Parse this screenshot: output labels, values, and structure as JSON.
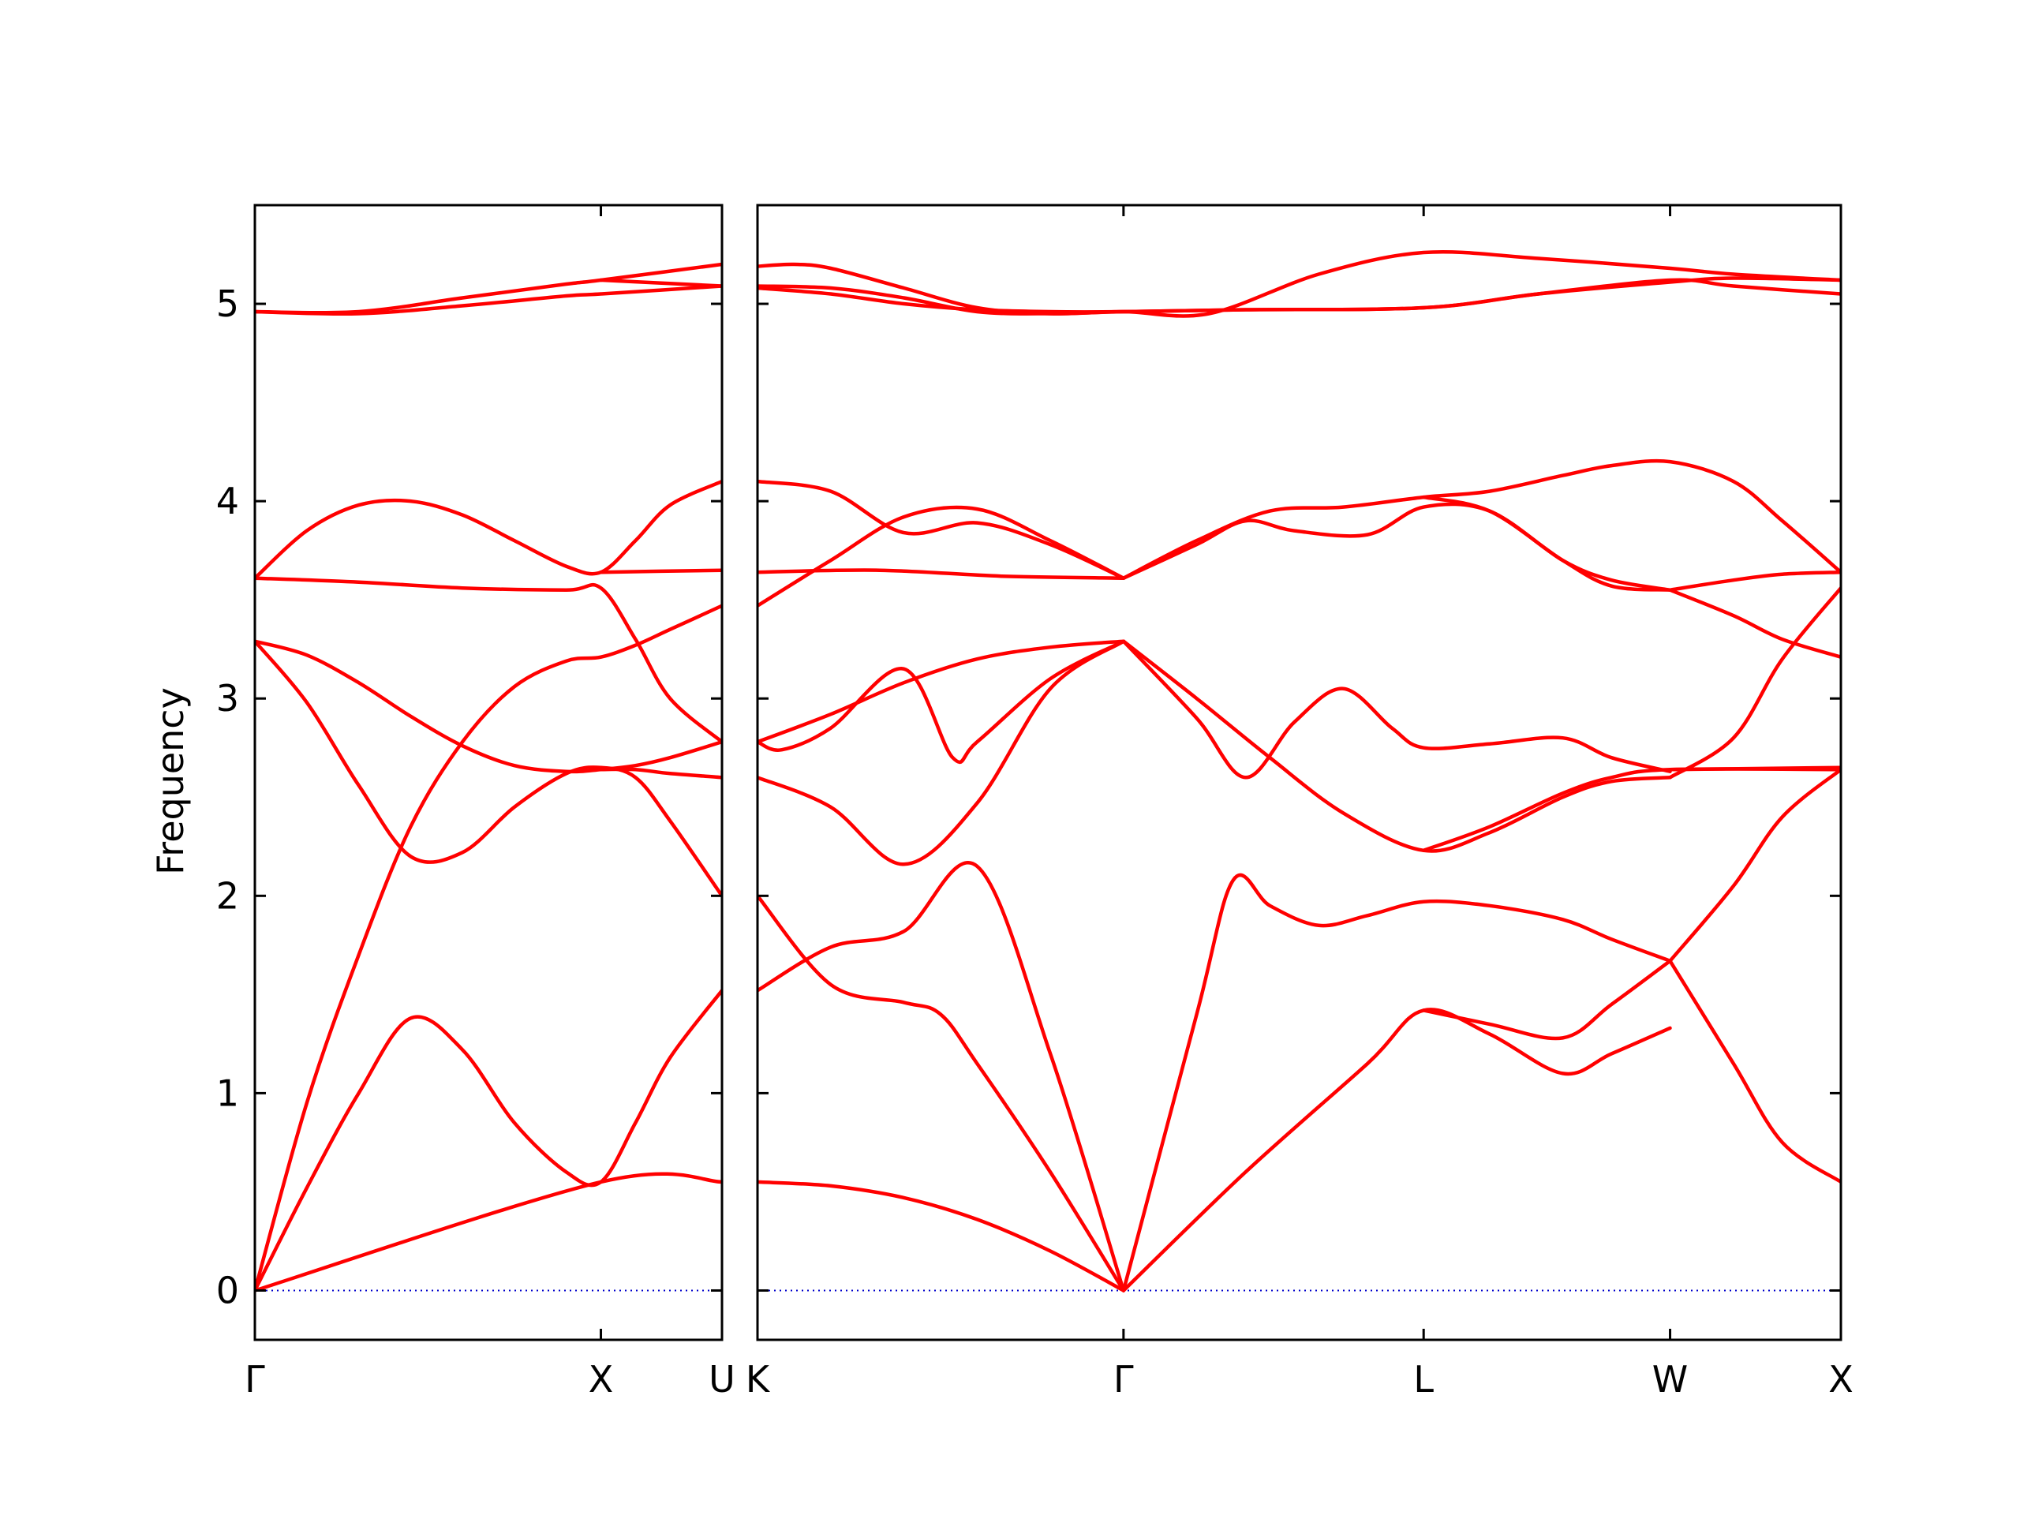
{
  "chart_data": {
    "type": "line",
    "title": "",
    "ylabel": "Frequency",
    "ylim": [
      -0.25,
      5.5
    ],
    "yticks": [
      0,
      1,
      2,
      3,
      4,
      5
    ],
    "grid": false,
    "line_color": "#ff0000",
    "zero_line_color": "#0000cc",
    "panels": [
      {
        "name": "Γ-X-U",
        "xlim": [
          0,
          1.35
        ],
        "ticks": [
          {
            "label": "Γ",
            "x": 0
          },
          {
            "label": "X",
            "x": 1.0
          },
          {
            "label": "U",
            "x": 1.35
          }
        ],
        "series": [
          {
            "x": [
              0,
              0.15,
              0.3,
              0.45,
              0.6,
              0.75,
              0.9,
              1.0,
              1.1,
              1.2,
              1.35
            ],
            "y": [
              0,
              0.52,
              1.0,
              1.38,
              1.22,
              0.85,
              0.6,
              0.55,
              0.85,
              1.18,
              1.52
            ]
          },
          {
            "x": [
              0,
              1.0,
              1.35
            ],
            "y": [
              0,
              0.55,
              0.55
            ]
          },
          {
            "x": [
              0,
              0.15,
              0.3,
              0.45,
              0.6,
              0.75,
              0.9,
              1.0,
              1.1,
              1.2,
              1.35
            ],
            "y": [
              0,
              0.95,
              1.7,
              2.35,
              2.78,
              3.06,
              3.19,
              3.21,
              3.27,
              3.35,
              3.47
            ]
          },
          {
            "x": [
              0,
              0.15,
              0.3,
              0.45,
              0.6,
              0.75,
              0.9,
              1.0,
              1.1,
              1.2,
              1.35
            ],
            "y": [
              3.29,
              2.98,
              2.56,
              2.2,
              2.22,
              2.45,
              2.62,
              2.65,
              2.6,
              2.38,
              2.0
            ]
          },
          {
            "x": [
              0,
              0.15,
              0.3,
              0.45,
              0.6,
              0.75,
              0.9,
              1.0,
              1.1,
              1.2,
              1.35
            ],
            "y": [
              3.29,
              3.22,
              3.08,
              2.91,
              2.76,
              2.66,
              2.63,
              2.64,
              2.66,
              2.7,
              2.78
            ]
          },
          {
            "x": [
              1.0,
              1.1,
              1.2,
              1.35
            ],
            "y": [
              2.64,
              2.64,
              2.62,
              2.6
            ]
          },
          {
            "x": [
              0,
              0.3,
              0.6,
              0.9,
              1.0,
              1.1,
              1.2,
              1.35
            ],
            "y": [
              3.61,
              3.59,
              3.56,
              3.55,
              3.56,
              3.3,
              3.0,
              2.78
            ]
          },
          {
            "x": [
              0,
              0.15,
              0.3,
              0.45,
              0.6,
              0.75,
              0.9,
              1.0,
              1.1,
              1.2,
              1.35
            ],
            "y": [
              3.61,
              3.85,
              3.98,
              4.0,
              3.93,
              3.8,
              3.67,
              3.64,
              3.8,
              3.98,
              4.1
            ]
          },
          {
            "x": [
              1.0,
              1.35
            ],
            "y": [
              3.64,
              3.65
            ]
          },
          {
            "x": [
              0,
              0.3,
              0.6,
              0.9,
              1.0,
              1.35
            ],
            "y": [
              4.96,
              4.95,
              4.99,
              5.04,
              5.05,
              5.09
            ]
          },
          {
            "x": [
              0,
              0.3,
              0.6,
              0.9,
              1.0,
              1.35
            ],
            "y": [
              4.96,
              4.96,
              5.03,
              5.1,
              5.12,
              5.2
            ]
          },
          {
            "x": [
              1.0,
              1.35
            ],
            "y": [
              5.12,
              5.09
            ]
          }
        ]
      },
      {
        "name": "K-Γ-L-W-X",
        "xlim": [
          0,
          4.44
        ],
        "ticks": [
          {
            "label": "K",
            "x": 0
          },
          {
            "label": "Γ",
            "x": 1.5
          },
          {
            "label": "L",
            "x": 2.73
          },
          {
            "label": "W",
            "x": 3.74
          },
          {
            "label": "X",
            "x": 4.44
          }
        ],
        "series": [
          {
            "x": [
              0,
              0.3,
              0.6,
              0.9,
              1.2,
              1.5
            ],
            "y": [
              0.55,
              0.53,
              0.47,
              0.36,
              0.2,
              0
            ]
          },
          {
            "x": [
              0,
              0.3,
              0.6,
              0.75,
              0.9,
              1.2,
              1.5
            ],
            "y": [
              2.0,
              1.55,
              1.46,
              1.4,
              1.15,
              0.6,
              0
            ]
          },
          {
            "x": [
              0,
              0.3,
              0.6,
              0.9,
              1.2,
              1.5
            ],
            "y": [
              1.52,
              1.74,
              1.82,
              2.15,
              1.2,
              0
            ]
          },
          {
            "x": [
              1.5,
              2.0,
              2.5,
              2.73,
              3.0,
              3.3,
              3.5,
              3.74
            ],
            "y": [
              0,
              0.6,
              1.15,
              1.42,
              1.3,
              1.1,
              1.2,
              1.33
            ]
          },
          {
            "x": [
              2.73,
              3.0,
              3.3,
              3.5,
              3.74
            ],
            "y": [
              1.42,
              1.35,
              1.28,
              1.45,
              1.67
            ]
          },
          {
            "x": [
              1.5,
              1.8,
              1.95,
              2.1,
              2.3,
              2.5,
              2.73,
              3.0,
              3.3,
              3.5,
              3.74
            ],
            "y": [
              0,
              1.4,
              2.08,
              1.95,
              1.85,
              1.9,
              1.97,
              1.95,
              1.88,
              1.78,
              1.67
            ]
          },
          {
            "x": [
              3.74,
              4.0,
              4.2,
              4.44
            ],
            "y": [
              1.67,
              1.15,
              0.75,
              0.55
            ]
          },
          {
            "x": [
              3.74,
              4.0,
              4.2,
              4.44
            ],
            "y": [
              1.67,
              2.05,
              2.4,
              2.64
            ]
          },
          {
            "x": [
              0,
              0.3,
              0.6,
              0.9,
              1.2,
              1.5
            ],
            "y": [
              2.6,
              2.45,
              2.16,
              2.47,
              3.05,
              3.29
            ]
          },
          {
            "x": [
              0,
              0.3,
              0.6,
              0.9,
              1.2,
              1.5
            ],
            "y": [
              2.78,
              2.92,
              3.08,
              3.2,
              3.26,
              3.29
            ]
          },
          {
            "x": [
              0,
              0.1,
              0.3,
              0.6,
              0.8,
              0.9,
              1.2,
              1.5
            ],
            "y": [
              2.78,
              2.74,
              2.85,
              3.15,
              2.7,
              2.78,
              3.1,
              3.29
            ]
          },
          {
            "x": [
              1.5,
              1.8,
              2.0,
              2.2,
              2.4,
              2.6,
              2.73,
              3.0,
              3.3,
              3.5,
              3.74
            ],
            "y": [
              3.29,
              2.9,
              2.6,
              2.88,
              3.05,
              2.85,
              2.75,
              2.77,
              2.8,
              2.7,
              2.63
            ]
          },
          {
            "x": [
              1.5,
              1.8,
              2.1,
              2.4,
              2.73,
              3.0,
              3.3,
              3.5,
              3.74
            ],
            "y": [
              3.29,
              3.0,
              2.7,
              2.42,
              2.23,
              2.32,
              2.5,
              2.58,
              2.6
            ]
          },
          {
            "x": [
              3.74,
              4.0,
              4.2,
              4.44
            ],
            "y": [
              2.6,
              2.8,
              3.2,
              3.56
            ]
          },
          {
            "x": [
              2.73,
              3.0,
              3.3,
              3.5,
              3.74,
              4.44
            ],
            "y": [
              2.23,
              2.35,
              2.52,
              2.6,
              2.64,
              2.64
            ]
          },
          {
            "x": [
              3.74,
              4.44
            ],
            "y": [
              2.64,
              2.65
            ]
          },
          {
            "x": [
              0,
              0.5,
              1.0,
              1.5
            ],
            "y": [
              3.64,
              3.65,
              3.62,
              3.61
            ]
          },
          {
            "x": [
              0,
              0.3,
              0.6,
              0.9,
              1.2,
              1.5
            ],
            "y": [
              4.1,
              4.05,
              3.84,
              3.89,
              3.78,
              3.61
            ]
          },
          {
            "x": [
              0,
              0.3,
              0.6,
              0.9,
              1.2,
              1.5
            ],
            "y": [
              3.47,
              3.7,
              3.92,
              3.96,
              3.8,
              3.61
            ]
          },
          {
            "x": [
              1.5,
              1.8,
              2.1,
              2.4,
              2.73,
              3.0,
              3.3,
              3.5,
              3.74,
              4.0,
              4.2,
              4.44
            ],
            "y": [
              3.61,
              3.8,
              3.95,
              3.97,
              4.02,
              4.05,
              4.13,
              4.18,
              4.2,
              4.1,
              3.9,
              3.64
            ]
          },
          {
            "x": [
              1.5,
              1.8,
              2.0,
              2.2,
              2.5,
              2.73,
              3.0,
              3.3,
              3.5,
              3.74
            ],
            "y": [
              3.61,
              3.78,
              3.9,
              3.85,
              3.83,
              3.97,
              3.95,
              3.7,
              3.6,
              3.55
            ]
          },
          {
            "x": [
              2.73,
              3.0,
              3.3,
              3.5,
              3.74
            ],
            "y": [
              4.02,
              3.95,
              3.7,
              3.57,
              3.55
            ]
          },
          {
            "x": [
              3.74,
              4.0,
              4.2,
              4.44
            ],
            "y": [
              3.55,
              3.42,
              3.3,
              3.21
            ]
          },
          {
            "x": [
              3.74,
              4.0,
              4.2,
              4.44
            ],
            "y": [
              3.55,
              3.6,
              3.63,
              3.64
            ]
          },
          {
            "x": [
              0,
              0.3,
              0.6,
              0.9,
              1.2,
              1.5,
              2.0,
              2.73,
              3.2,
              3.74,
              4.0,
              4.44
            ],
            "y": [
              5.08,
              5.05,
              5.0,
              4.97,
              4.96,
              4.96,
              4.97,
              4.98,
              5.05,
              5.11,
              5.13,
              5.12
            ]
          },
          {
            "x": [
              0,
              0.3,
              0.6,
              0.9,
              1.2,
              1.5,
              2.0,
              2.73,
              3.2,
              3.74,
              4.0,
              4.44
            ],
            "y": [
              5.09,
              5.08,
              5.03,
              4.96,
              4.95,
              4.96,
              4.97,
              4.98,
              5.05,
              5.12,
              5.09,
              5.05
            ]
          },
          {
            "x": [
              0,
              0.15,
              0.3,
              0.6,
              0.9,
              1.2,
              1.5,
              1.85,
              2.3,
              2.73,
              3.2,
              3.74,
              4.0,
              4.44
            ],
            "y": [
              5.19,
              5.2,
              5.18,
              5.08,
              4.98,
              4.95,
              4.96,
              4.95,
              5.15,
              5.26,
              5.23,
              5.18,
              5.15,
              5.12
            ]
          }
        ]
      }
    ]
  }
}
